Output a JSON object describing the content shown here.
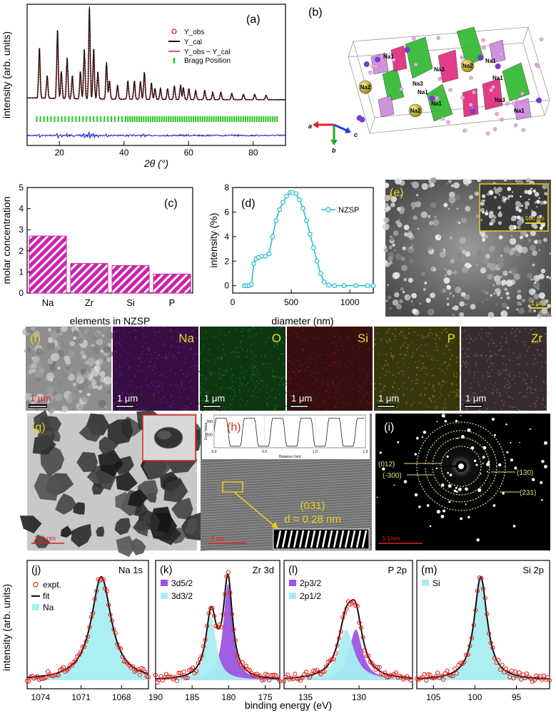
{
  "panel_labels": {
    "a": "(a)",
    "b": "(b)",
    "c": "(c)",
    "d": "(d)",
    "e": "(e)",
    "f": "(f)",
    "g": "(g)",
    "h": "(h)",
    "i": "(i)",
    "j": "(j)",
    "k": "(k)",
    "l": "(l)",
    "m": "(m)"
  },
  "panel_a": {
    "ylabel": "intensity (arb. units)",
    "xlabel": "2θ (°)",
    "xticks": [
      "20",
      "40",
      "60",
      "80"
    ],
    "legend": [
      "Y_obs",
      "Y_cal",
      "Y_obs − Y_cal",
      "Bragg Position"
    ],
    "colors": {
      "obs": "#e0201c",
      "cal": "#111111",
      "diff": "#1a1acc",
      "bragg": "#22c422"
    }
  },
  "panel_b": {
    "site_labels": [
      "Na1",
      "Na2",
      "Na3",
      "Na2",
      "Na1",
      "Na3",
      "Na1",
      "Na1",
      "Na2",
      "Na1",
      "Na3",
      "Na1"
    ],
    "axes": [
      "a",
      "b",
      "c"
    ]
  },
  "chart_data": [
    {
      "type": "bar",
      "panel": "c",
      "categories": [
        "Na",
        "Zr",
        "Si",
        "P"
      ],
      "values": [
        2.7,
        1.4,
        1.3,
        0.9
      ],
      "ylim": [
        0,
        5
      ],
      "yticks": [
        "0",
        "1",
        "2",
        "3",
        "4",
        "5"
      ],
      "xlabel": "elements in NZSP",
      "ylabel": "molar concentration",
      "color": "#cc22aa"
    },
    {
      "type": "line",
      "panel": "d",
      "series": [
        {
          "name": "NZSP",
          "x": [
            100,
            120,
            140,
            160,
            180,
            200,
            220,
            250,
            280,
            310,
            340,
            370,
            400,
            430,
            460,
            490,
            510,
            540,
            570,
            600,
            630,
            660,
            690,
            720,
            750,
            780,
            820,
            870,
            950,
            1050,
            1150,
            1200
          ],
          "y": [
            0,
            0,
            0,
            0.1,
            1.8,
            2.2,
            2.3,
            2.4,
            2.4,
            2.6,
            4.0,
            5.3,
            6.2,
            6.8,
            7.3,
            7.6,
            7.6,
            7.5,
            7.0,
            6.3,
            5.3,
            4.2,
            3.1,
            2.0,
            1.0,
            0.3,
            0.05,
            0,
            0,
            0,
            0,
            0
          ]
        }
      ],
      "xlim": [
        0,
        1200
      ],
      "ylim": [
        -0.6,
        8
      ],
      "xticks": [
        "0",
        "500",
        "1000"
      ],
      "yticks": [
        "0",
        "2",
        "4",
        "6",
        "8"
      ],
      "xlabel": "diameter (nm)",
      "ylabel": "intensity (%)",
      "color": "#22bfcc"
    }
  ],
  "panel_e": {
    "scalebar_main": "1 μm",
    "scalebar_inset": "500 nm"
  },
  "panel_f": {
    "maps": [
      {
        "element": "",
        "color": "#888888",
        "scalebar": "1 μm"
      },
      {
        "element": "Na",
        "color": "#8a18a8",
        "scalebar": "1 μm"
      },
      {
        "element": "O",
        "color": "#14881c",
        "scalebar": "1 μm"
      },
      {
        "element": "Si",
        "color": "#8a1418",
        "scalebar": "1 μm"
      },
      {
        "element": "P",
        "color": "#8a8a14",
        "scalebar": "1 μm"
      },
      {
        "element": "Zr",
        "color": "#8a6a74",
        "scalebar": "1 μm"
      }
    ]
  },
  "panel_g": {
    "scalebar": "200 nm"
  },
  "panel_h": {
    "profile_xlabel": "Distance (nm)",
    "profile_ylabel": "Gray Value",
    "profile_xticks": [
      "0.0",
      "0.5",
      "1.0",
      "1.5"
    ],
    "profile_yticks": [
      "100",
      "200"
    ],
    "plane": "(031)",
    "spacing": "d = 0.28 nm",
    "scalebar": "5 nm"
  },
  "panel_i": {
    "rings": [
      "(012)",
      "(-300)",
      "(130)",
      "(231)"
    ],
    "scalebar": "5 1/nm"
  },
  "xps": {
    "ylabel": "intensity (arb. units)",
    "xlabel": "binding energy (eV)",
    "panels": [
      {
        "id": "j",
        "title": "Na 1s",
        "xticks": [
          "1074",
          "1071",
          "1068"
        ],
        "legend": [
          "expt.",
          "fit",
          "Na"
        ]
      },
      {
        "id": "k",
        "title": "Zr 3d",
        "xticks": [
          "190",
          "185",
          "180",
          "175"
        ],
        "legend": [
          "3d5/2",
          "3d3/2"
        ]
      },
      {
        "id": "l",
        "title": "P 2p",
        "xticks": [
          "135",
          "130"
        ],
        "legend": [
          "2p3/2",
          "2p1/2"
        ]
      },
      {
        "id": "m",
        "title": "Si 2p",
        "xticks": [
          "105",
          "100",
          "95"
        ],
        "legend": [
          "Si"
        ]
      }
    ],
    "colors": {
      "expt": "#e0201c",
      "fit": "#111111",
      "cyan": "#a8eef2",
      "violet": "#9b55e0"
    }
  }
}
